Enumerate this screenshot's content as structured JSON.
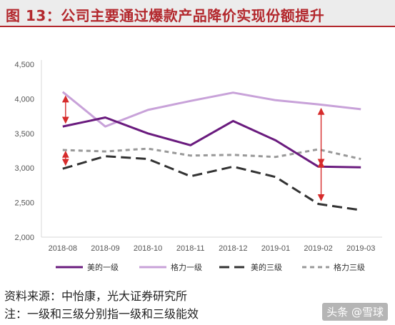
{
  "title": "图 13：公司主要通过爆款产品降价实现份额提升",
  "source": "资料来源：中怡康，光大证券研究所",
  "note": "注：一级和三级分别指一级和三级能效",
  "watermark": "头条 @雪球",
  "colors": {
    "title": "#b3282d",
    "axis": "#d9d9d9"
  },
  "chart_data": {
    "type": "line",
    "categories": [
      "2018-08",
      "2018-09",
      "2018-10",
      "2018-11",
      "2018-12",
      "2019-01",
      "2019-02",
      "2019-03"
    ],
    "yticks": [
      "2,000",
      "2,500",
      "3,000",
      "3,500",
      "4,000",
      "4,500"
    ],
    "ylim": [
      2000,
      4500
    ],
    "grid": false,
    "legend_position": "bottom",
    "series": [
      {
        "name": "美的一级",
        "values": [
          3600,
          3730,
          3500,
          3330,
          3680,
          3400,
          3020,
          3010
        ],
        "color": "#6a1b7e",
        "dash": "solid"
      },
      {
        "name": "格力一级",
        "values": [
          4100,
          3600,
          3840,
          3970,
          4090,
          3980,
          3920,
          3850
        ],
        "color": "#c8a2d9",
        "dash": "solid"
      },
      {
        "name": "美的三级",
        "values": [
          2990,
          3170,
          3130,
          2880,
          3020,
          2870,
          2480,
          2390
        ],
        "color": "#333333",
        "dash": "long"
      },
      {
        "name": "格力三级",
        "values": [
          3260,
          3240,
          3280,
          3180,
          3190,
          3160,
          3270,
          3130
        ],
        "color": "#999999",
        "dash": "short"
      }
    ],
    "annotations": [
      {
        "type": "double-arrow",
        "x": "2018-08",
        "from": 3650,
        "to": 4040,
        "color": "#d62b2b"
      },
      {
        "type": "double-arrow",
        "x": "2018-08",
        "from": 3040,
        "to": 3240,
        "color": "#d62b2b"
      },
      {
        "type": "double-arrow",
        "x": "2019-02",
        "from": 3040,
        "to": 3860,
        "color": "#d62b2b"
      },
      {
        "type": "double-arrow",
        "x": "2019-02",
        "from": 2530,
        "to": 3100,
        "color": "#d62b2b"
      }
    ]
  }
}
